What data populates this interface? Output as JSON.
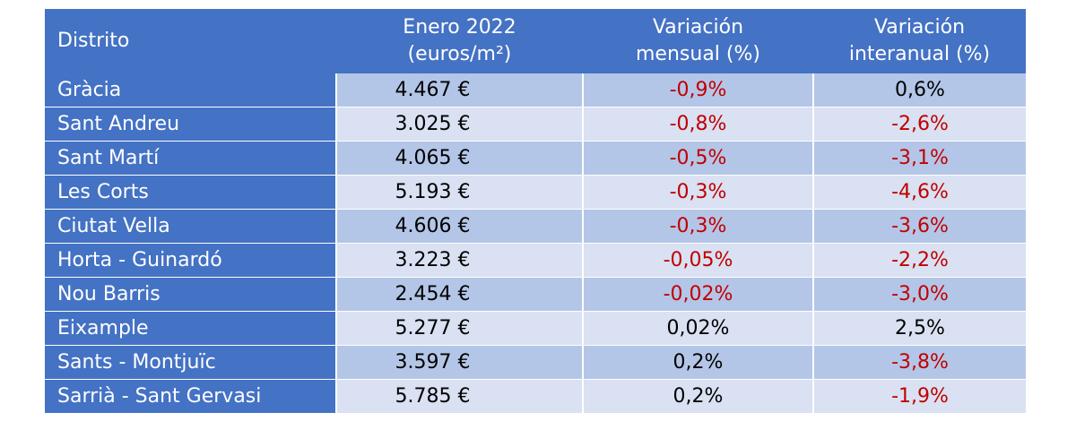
{
  "table": {
    "headers": {
      "district": "Distrito",
      "price_line1": "Enero 2022",
      "price_line2": "(euros/m²)",
      "monthly_line1": "Variación",
      "monthly_line2": "mensual (%)",
      "yearly_line1": "Variación",
      "yearly_line2": "interanual (%)"
    },
    "rows": [
      {
        "district": "Gràcia",
        "price": "4.467 €",
        "monthly": "-0,9%",
        "yearly": "0,6%"
      },
      {
        "district": "Sant Andreu",
        "price": "3.025 €",
        "monthly": "-0,8%",
        "yearly": "-2,6%"
      },
      {
        "district": "Sant Martí",
        "price": "4.065 €",
        "monthly": "-0,5%",
        "yearly": "-3,1%"
      },
      {
        "district": "Les Corts",
        "price": "5.193 €",
        "monthly": "-0,3%",
        "yearly": "-4,6%"
      },
      {
        "district": "Ciutat Vella",
        "price": "4.606 €",
        "monthly": "-0,3%",
        "yearly": "-3,6%"
      },
      {
        "district": "Horta - Guinardó",
        "price": "3.223 €",
        "monthly": "-0,05%",
        "yearly": "-2,2%"
      },
      {
        "district": "Nou Barris",
        "price": "2.454 €",
        "monthly": "-0,02%",
        "yearly": "-3,0%"
      },
      {
        "district": "Eixample",
        "price": "5.277 €",
        "monthly": "0,02%",
        "yearly": "2,5%"
      },
      {
        "district": "Sants - Montjuïc",
        "price": "3.597 €",
        "monthly": "0,2%",
        "yearly": "-3,8%"
      },
      {
        "district": "Sarrià - Sant Gervasi",
        "price": "5.785 €",
        "monthly": "0,2%",
        "yearly": "-1,9%"
      }
    ],
    "colors": {
      "header_bg": "#4472c4",
      "row_odd_bg": "#b4c6e7",
      "row_even_bg": "#d9e1f2",
      "negative_text": "#c00000"
    }
  }
}
